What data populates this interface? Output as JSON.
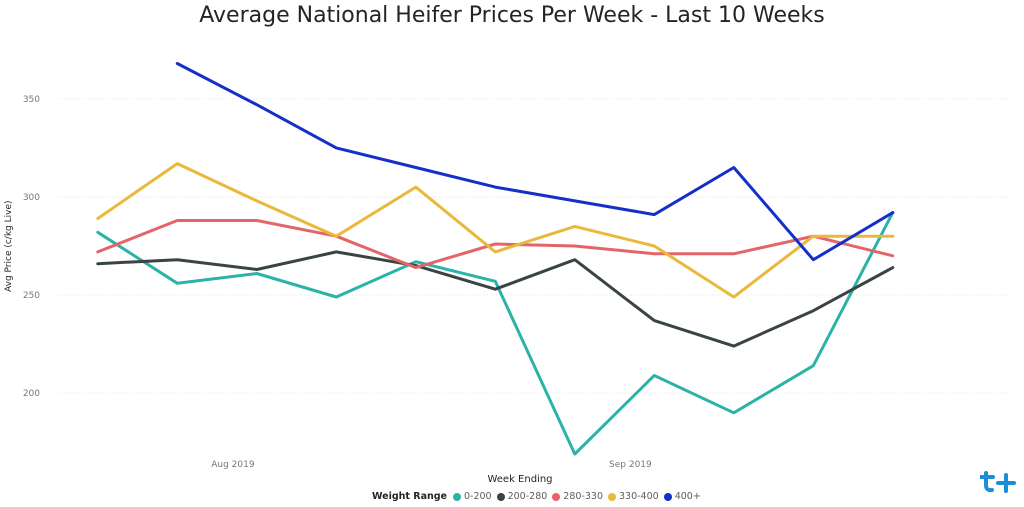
{
  "chart_data": {
    "type": "line",
    "title": "Average National Heifer Prices Per Week - Last 10 Weeks",
    "xlabel": "Week Ending",
    "ylabel": "Avg Price (c/kg Live)",
    "ylim": [
      170,
      380
    ],
    "yticks": [
      200,
      250,
      300,
      350
    ],
    "x_tick_labels": [
      {
        "label": "Aug 2019",
        "position": 1.7
      },
      {
        "label": "Sep 2019",
        "position": 6.7
      }
    ],
    "x": [
      0,
      1,
      2,
      3,
      4,
      5,
      6,
      7,
      8,
      9,
      10,
      11
    ],
    "legend_title": "Weight Range",
    "legend_position": "bottom-center",
    "grid": true,
    "series": [
      {
        "name": "0-200",
        "color": "#2bb3a8",
        "values": [
          282,
          256,
          261,
          249,
          267,
          257,
          169,
          209,
          190,
          214,
          292,
          null
        ]
      },
      {
        "name": "200-280",
        "color": "#3a4345",
        "values": [
          266,
          268,
          263,
          272,
          265,
          253,
          268,
          237,
          224,
          242,
          264,
          null
        ]
      },
      {
        "name": "280-330",
        "color": "#e3656a",
        "values": [
          272,
          288,
          288,
          280,
          264,
          276,
          275,
          271,
          271,
          280,
          270,
          null
        ]
      },
      {
        "name": "330-400",
        "color": "#eab93b",
        "values": [
          289,
          317,
          298,
          280,
          305,
          272,
          285,
          275,
          249,
          280,
          280,
          null
        ]
      },
      {
        "name": "400+",
        "color": "#1530c8",
        "values": [
          null,
          368,
          347,
          325,
          315,
          305,
          298,
          291,
          315,
          268,
          292,
          null
        ]
      }
    ]
  },
  "logo_text": "t+"
}
